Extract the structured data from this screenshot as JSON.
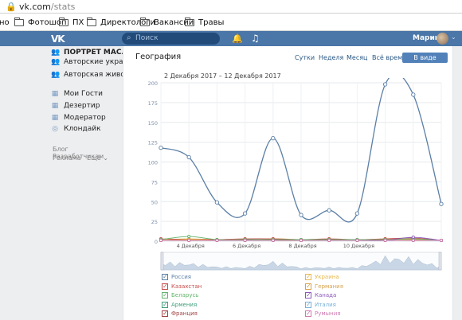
{
  "browser": {
    "url_host": "vk.com",
    "url_path": "/stats",
    "bookmarks": [
      "но",
      "Фотошоп",
      "ПХ",
      "Директологи",
      "Вакансии",
      "Травы"
    ]
  },
  "header": {
    "search_placeholder": "Поиск",
    "user_name": "Марина"
  },
  "sidebar": {
    "items": [
      {
        "label": "ПОРТРЕТ МАСЛОМ...",
        "icon": "group-icon",
        "bold": true
      },
      {
        "label": "Авторские украш...",
        "icon": "group-icon",
        "bold": false
      },
      {
        "label": "Авторская живоп...",
        "icon": "group-icon",
        "bold": false
      },
      {
        "label": "Мои Гости",
        "icon": "app-icon",
        "bold": false
      },
      {
        "label": "Дезертир",
        "icon": "app-icon",
        "bold": false
      },
      {
        "label": "Модератор",
        "icon": "app-icon",
        "bold": false
      },
      {
        "label": "Клондайк",
        "icon": "app-icon",
        "bold": false
      }
    ],
    "links_row1": [
      "Блог",
      "Разработчикам"
    ],
    "links_row2": [
      "Реклама",
      "Ещё ⌄"
    ]
  },
  "page": {
    "title": "География",
    "tabs": [
      "Сутки",
      "Неделя",
      "Месяц",
      "Всё время"
    ],
    "active_tab": "В виде графиков",
    "period": "2 Декабря 2017 – 12 Декабря 2017"
  },
  "chart_data": {
    "type": "line",
    "ylim": [
      0,
      200
    ],
    "y_ticks": [
      "200",
      "175",
      "150",
      "125",
      "100",
      "75",
      "50",
      "25",
      "0"
    ],
    "x_ticks": [
      "4 Декабря",
      "6 Декабря",
      "8 Декабря",
      "10 Декабря"
    ],
    "series": [
      {
        "name": "Россия",
        "color": "#5b7fa6",
        "values": [
          118,
          106,
          49,
          35,
          130,
          33,
          39,
          35,
          198,
          185,
          47
        ]
      },
      {
        "name": "Украина",
        "color": "#e8b84c",
        "values": [
          2,
          3,
          2,
          1,
          3,
          2,
          2,
          1,
          3,
          2,
          1
        ]
      },
      {
        "name": "Казахстан",
        "color": "#c64a4a",
        "values": [
          3,
          2,
          2,
          3,
          3,
          2,
          3,
          2,
          3,
          4,
          1
        ]
      },
      {
        "name": "Германия",
        "color": "#d8a24a",
        "values": [
          1,
          2,
          1,
          2,
          1,
          1,
          2,
          1,
          2,
          2,
          1
        ]
      },
      {
        "name": "Беларусь",
        "color": "#62b36b",
        "values": [
          2,
          6,
          2,
          2,
          2,
          2,
          2,
          2,
          2,
          3,
          1
        ]
      },
      {
        "name": "Канада",
        "color": "#8a5ab8",
        "values": [
          1,
          1,
          1,
          1,
          1,
          1,
          1,
          1,
          1,
          5,
          1
        ]
      },
      {
        "name": "Армения",
        "color": "#3e9e7a",
        "values": [
          1,
          1,
          1,
          1,
          1,
          1,
          1,
          1,
          1,
          1,
          1
        ]
      },
      {
        "name": "Италия",
        "color": "#7ab0d8",
        "values": [
          1,
          1,
          1,
          1,
          1,
          1,
          1,
          1,
          1,
          1,
          1
        ]
      },
      {
        "name": "Франция",
        "color": "#a04040",
        "values": [
          1,
          1,
          1,
          1,
          1,
          1,
          1,
          1,
          1,
          1,
          1
        ]
      },
      {
        "name": "Румыния",
        "color": "#d07ab0",
        "values": [
          1,
          1,
          1,
          1,
          1,
          1,
          1,
          1,
          1,
          1,
          1
        ]
      }
    ]
  },
  "legend": {
    "left": [
      {
        "label": "Россия",
        "color": "#5b7fa6"
      },
      {
        "label": "Казахстан",
        "color": "#c64a4a"
      },
      {
        "label": "Беларусь",
        "color": "#62b36b"
      },
      {
        "label": "Армения",
        "color": "#3e9e7a"
      },
      {
        "label": "Франция",
        "color": "#a04040"
      }
    ],
    "right": [
      {
        "label": "Украина",
        "color": "#e8b84c"
      },
      {
        "label": "Германия",
        "color": "#d8a24a"
      },
      {
        "label": "Канада",
        "color": "#8a5ab8"
      },
      {
        "label": "Италия",
        "color": "#7ab0d8"
      },
      {
        "label": "Румыния",
        "color": "#d07ab0"
      }
    ]
  }
}
